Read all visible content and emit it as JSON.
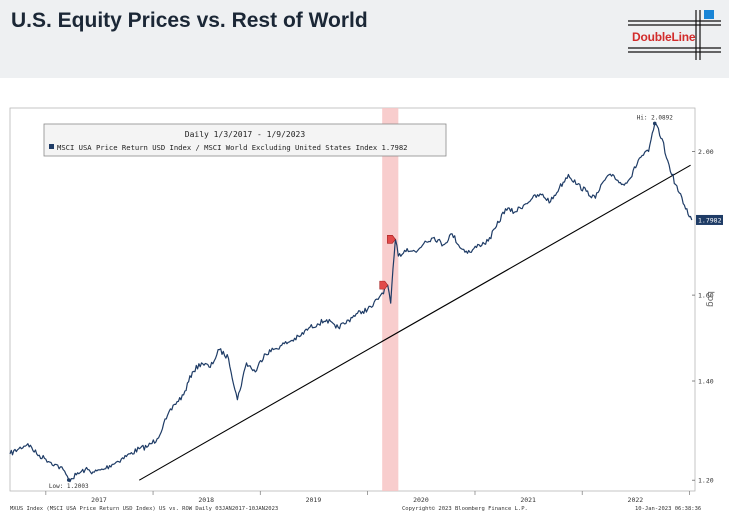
{
  "page": {
    "title": "U.S. Equity Prices vs. Rest of World"
  },
  "logo": {
    "text": "DoubleLine"
  },
  "legend": {
    "header": "Daily 1/3/2017 - 1/9/2023",
    "entry": "MSCI USA Price Return USD Index / MSCI World Excluding United States Index 1.7982"
  },
  "colors": {
    "series": "#1f3c66",
    "shade": "#f7c4c4",
    "trend": "#000000",
    "marker": "#e24a4a",
    "last_box": "#1f3c66"
  },
  "footer": {
    "left": "MXUS Index (MSCI USA Price Return USD Index) US vs. ROW  Daily 03JAN2017-10JAN2023",
    "center": "Copyright© 2023 Bloomberg Finance L.P.",
    "right": "10-Jan-2023 06:38:36"
  },
  "chart_data": {
    "type": "line",
    "xlabel": "",
    "ylabel": "Log",
    "y_scale": "log",
    "ylim": [
      1.18,
      2.14
    ],
    "xlim": [
      "2016-09-01",
      "2023-01-20"
    ],
    "x_tick_labels": [
      "2017",
      "2018",
      "2019",
      "2020",
      "2021",
      "2022"
    ],
    "y_tick_labels": [
      "1.20",
      "1.40",
      "1.60",
      "2.00"
    ],
    "y_ticks": [
      1.2,
      1.4,
      1.6,
      2.0
    ],
    "last_value_label": "1.7982",
    "last_value": 1.7982,
    "annotations": [
      {
        "text": "Low: 1.2003",
        "x": "2017-03-20",
        "y": 1.2003
      },
      {
        "text": "Hi: 2.0892",
        "x": "2022-09-05",
        "y": 2.0892
      }
    ],
    "shaded_region": {
      "from": "2020-02-20",
      "to": "2020-04-15"
    },
    "markers": [
      {
        "x": "2020-03-10",
        "y": 1.625
      },
      {
        "x": "2020-04-05",
        "y": 1.745
      }
    ],
    "trendline": {
      "x": [
        "2017-11-15",
        "2023-01-05"
      ],
      "y": [
        1.2,
        1.958
      ]
    },
    "series": [
      {
        "name": "MSCI USA Price Return USD Index / MSCI World Excluding United States Index",
        "x": [
          "2016-09-01",
          "2016-10-01",
          "2016-11-01",
          "2016-12-01",
          "2017-01-01",
          "2017-02-01",
          "2017-03-01",
          "2017-03-20",
          "2017-04-15",
          "2017-05-15",
          "2017-06-15",
          "2017-07-15",
          "2017-08-15",
          "2017-09-15",
          "2017-10-15",
          "2017-11-15",
          "2017-12-15",
          "2018-01-15",
          "2018-02-15",
          "2018-03-15",
          "2018-04-15",
          "2018-05-15",
          "2018-06-15",
          "2018-07-15",
          "2018-08-15",
          "2018-09-15",
          "2018-10-15",
          "2018-11-15",
          "2018-12-15",
          "2019-01-15",
          "2019-02-15",
          "2019-03-15",
          "2019-04-15",
          "2019-05-15",
          "2019-06-15",
          "2019-07-15",
          "2019-08-15",
          "2019-09-15",
          "2019-10-15",
          "2019-11-15",
          "2019-12-15",
          "2020-01-15",
          "2020-02-15",
          "2020-03-10",
          "2020-03-20",
          "2020-04-05",
          "2020-04-15",
          "2020-05-15",
          "2020-06-15",
          "2020-07-15",
          "2020-08-15",
          "2020-09-15",
          "2020-10-15",
          "2020-11-15",
          "2020-12-15",
          "2021-01-15",
          "2021-02-15",
          "2021-03-15",
          "2021-04-15",
          "2021-05-15",
          "2021-06-15",
          "2021-07-15",
          "2021-08-15",
          "2021-09-15",
          "2021-10-15",
          "2021-11-15",
          "2021-12-15",
          "2022-01-15",
          "2022-02-15",
          "2022-03-15",
          "2022-04-15",
          "2022-05-15",
          "2022-06-15",
          "2022-07-15",
          "2022-08-15",
          "2022-09-05",
          "2022-09-30",
          "2022-10-15",
          "2022-11-15",
          "2022-12-15",
          "2023-01-09"
        ],
        "values": [
          1.25,
          1.26,
          1.27,
          1.25,
          1.24,
          1.23,
          1.22,
          1.2003,
          1.21,
          1.22,
          1.215,
          1.22,
          1.23,
          1.24,
          1.25,
          1.26,
          1.265,
          1.28,
          1.32,
          1.35,
          1.37,
          1.42,
          1.44,
          1.43,
          1.47,
          1.45,
          1.36,
          1.44,
          1.42,
          1.46,
          1.47,
          1.48,
          1.49,
          1.5,
          1.52,
          1.53,
          1.54,
          1.52,
          1.53,
          1.55,
          1.56,
          1.57,
          1.6,
          1.625,
          1.58,
          1.745,
          1.7,
          1.72,
          1.71,
          1.74,
          1.75,
          1.73,
          1.76,
          1.72,
          1.71,
          1.73,
          1.74,
          1.78,
          1.83,
          1.82,
          1.84,
          1.86,
          1.87,
          1.85,
          1.89,
          1.93,
          1.9,
          1.88,
          1.86,
          1.91,
          1.93,
          1.9,
          1.92,
          1.98,
          2.0,
          2.0892,
          2.04,
          1.98,
          1.9,
          1.84,
          1.7982
        ]
      }
    ]
  }
}
